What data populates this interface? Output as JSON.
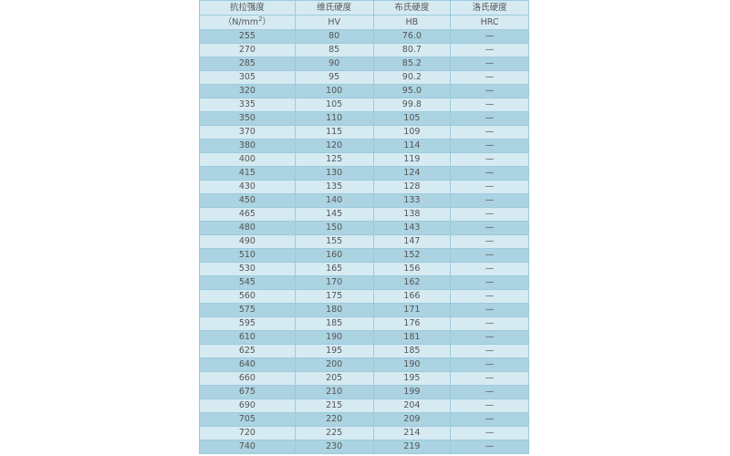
{
  "header": [
    {
      "line1": "抗拉强度",
      "line2": "（N/mm",
      "sup": "2",
      "line2_end": "）"
    },
    {
      "line1": "维氏硬度",
      "line2": "HV"
    },
    {
      "line1": "布氏硬度",
      "line2": "HB"
    },
    {
      "line1": "洛氏硬度",
      "line2": "HRC"
    }
  ],
  "rows": [
    [
      "255",
      "80",
      "76.0",
      "—"
    ],
    [
      "270",
      "85",
      "80.7",
      "—"
    ],
    [
      "285",
      "90",
      "85.2",
      "—"
    ],
    [
      "305",
      "95",
      "90.2",
      "—"
    ],
    [
      "320",
      "100",
      "95.0",
      "—"
    ],
    [
      "335",
      "105",
      "99.8",
      "—"
    ],
    [
      "350",
      "110",
      "105",
      "—"
    ],
    [
      "370",
      "115",
      "109",
      "—"
    ],
    [
      "380",
      "120",
      "114",
      "—"
    ],
    [
      "400",
      "125",
      "119",
      "—"
    ],
    [
      "415",
      "130",
      "124",
      "—"
    ],
    [
      "430",
      "135",
      "128",
      "—"
    ],
    [
      "450",
      "140",
      "133",
      "—"
    ],
    [
      "465",
      "145",
      "138",
      "—"
    ],
    [
      "480",
      "150",
      "143",
      "—"
    ],
    [
      "490",
      "155",
      "147",
      "—"
    ],
    [
      "510",
      "160",
      "152",
      "—"
    ],
    [
      "530",
      "165",
      "156",
      "—"
    ],
    [
      "545",
      "170",
      "162",
      "—"
    ],
    [
      "560",
      "175",
      "166",
      "—"
    ],
    [
      "575",
      "180",
      "171",
      "—"
    ],
    [
      "595",
      "185",
      "176",
      "—"
    ],
    [
      "610",
      "190",
      "181",
      "—"
    ],
    [
      "625",
      "195",
      "185",
      "—"
    ],
    [
      "640",
      "200",
      "190",
      "—"
    ],
    [
      "660",
      "205",
      "195",
      "—"
    ],
    [
      "675",
      "210",
      "199",
      "—"
    ],
    [
      "690",
      "215",
      "204",
      "—"
    ],
    [
      "705",
      "220",
      "209",
      "—"
    ],
    [
      "720",
      "225",
      "214",
      "—"
    ],
    [
      "740",
      "230",
      "219",
      "—"
    ]
  ],
  "colors": {
    "row_dark": "#abd3e1",
    "row_light": "#d6eaf2",
    "border": "#9ccbdd"
  }
}
